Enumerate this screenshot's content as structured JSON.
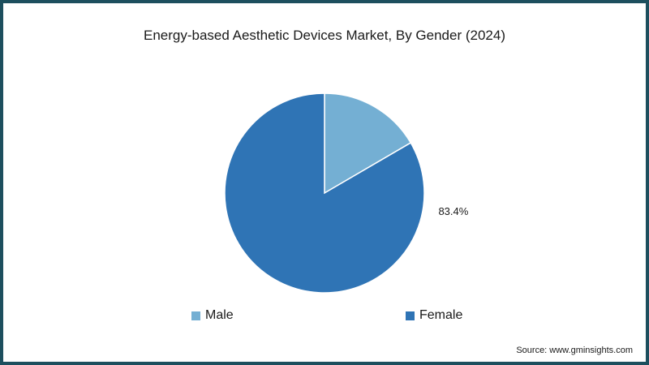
{
  "chart_data": {
    "type": "pie",
    "title": "Energy-based Aesthetic Devices Market, By Gender (2024)",
    "categories": [
      "Male",
      "Female"
    ],
    "values": [
      16.6,
      83.4
    ],
    "data_labels": [
      "",
      "83.4%"
    ],
    "colors": [
      "#74afd3",
      "#2f74b5"
    ],
    "legend_position": "bottom"
  },
  "source": "Source: www.gminsights.com"
}
